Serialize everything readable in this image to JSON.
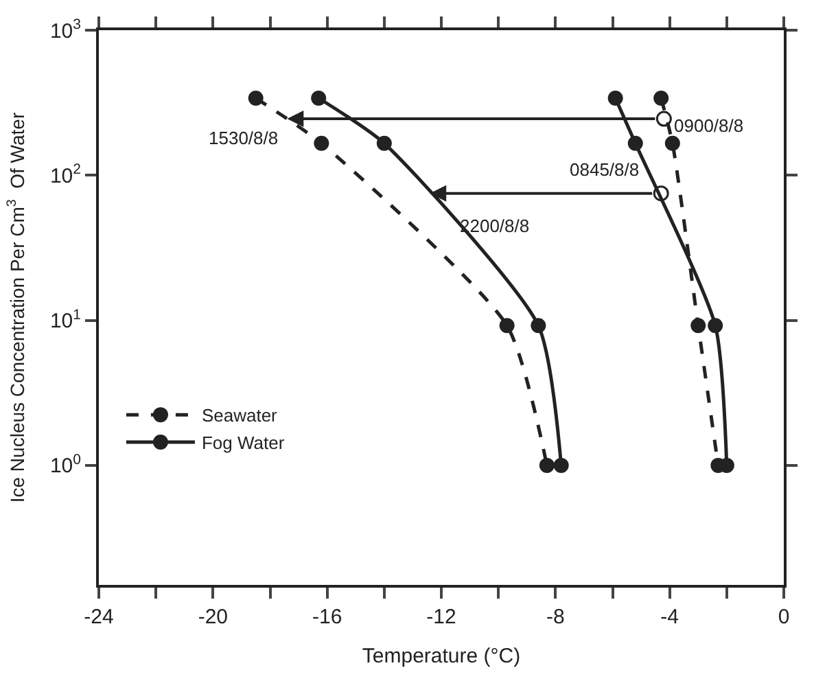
{
  "chart_data": {
    "type": "line",
    "xlabel": "Temperature (°C)",
    "ylabel": "Ice Nucleus Concentration Per Cm$^{3}$  Of Water",
    "xlim": [
      -24,
      0
    ],
    "xticks": [
      -24,
      {
        "value": -22,
        "label": null
      },
      -20,
      {
        "value": -18,
        "label": null
      },
      -16,
      {
        "value": -14,
        "label": null
      },
      -12,
      {
        "value": -10,
        "label": null
      },
      -8,
      {
        "value": -6,
        "label": null
      },
      -4,
      {
        "value": -2,
        "label": null
      },
      0
    ],
    "ylim": [
      0.15,
      1000
    ],
    "yticks": [
      {
        "value": 1,
        "label": "10$^{0}$"
      },
      {
        "value": 10,
        "label": "10$^{1}$"
      },
      {
        "value": 100,
        "label": "10$^{2}$"
      },
      {
        "value": 1000,
        "label": "10$^{3}$"
      }
    ],
    "log": "y",
    "legend": "bottom left",
    "marker": "circle",
    "series": [
      {
        "name": "Seawater",
        "color": "#222222",
        "line_style": "dashed",
        "x": [
          -18.5,
          -16.2,
          -9.7,
          -8.3
        ],
        "values": [
          340,
          166,
          9.2,
          1.0
        ]
      },
      {
        "name": "Fog Water",
        "color": "#222222",
        "line_style": "solid",
        "x": [
          -16.3,
          -14.0,
          -8.6,
          -7.8
        ],
        "values": [
          340,
          166,
          9.2,
          1.0
        ]
      },
      {
        "color": "#222222",
        "line_style": "dashed",
        "x": [
          -4.3,
          -3.9,
          -3.0,
          -2.3
        ],
        "values": [
          340,
          166,
          9.2,
          1.0
        ]
      },
      {
        "color": "#222222",
        "line_style": "solid",
        "x": [
          -5.9,
          -5.2,
          -2.4,
          -2.0
        ],
        "values": [
          340,
          166,
          9.2,
          1.0
        ]
      }
    ],
    "annotations": [
      {
        "text": "1530/8/8",
        "x": -17.5,
        "y": 245
      },
      {
        "text": "2200/8/8",
        "x": -12.5,
        "y": 75
      },
      {
        "text": "0900/8/8",
        "x": -4.2,
        "y": 245
      },
      {
        "text": "0845/8/8",
        "x": -4.3,
        "y": 75
      }
    ]
  }
}
